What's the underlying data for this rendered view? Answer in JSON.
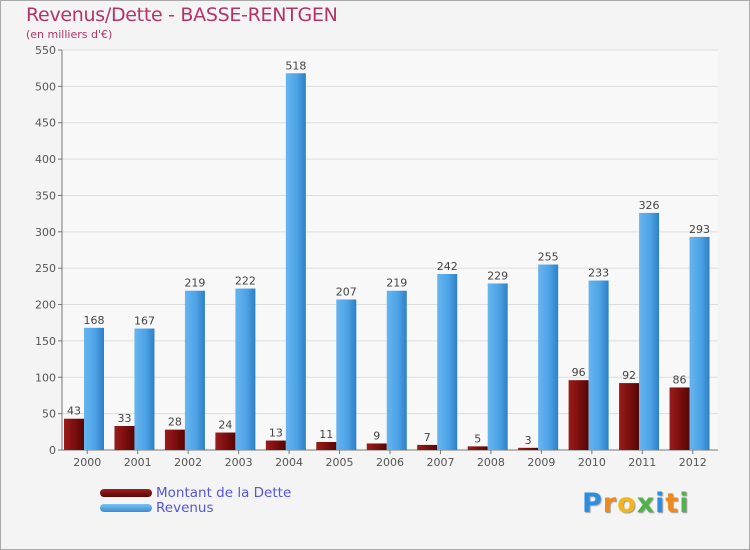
{
  "chart_data": {
    "type": "bar",
    "title": "Revenus/Dette - BASSE-RENTGEN",
    "subtitle": "(en milliers d'€)",
    "categories": [
      "2000",
      "2001",
      "2002",
      "2003",
      "2004",
      "2005",
      "2006",
      "2007",
      "2008",
      "2009",
      "2010",
      "2011",
      "2012"
    ],
    "series": [
      {
        "name": "Montant de la Dette",
        "color": "#7a0e0e",
        "values": [
          43,
          33,
          28,
          24,
          13,
          11,
          9,
          7,
          5,
          3,
          96,
          92,
          86
        ]
      },
      {
        "name": "Revenus",
        "color": "#4ea3e6",
        "values": [
          168,
          167,
          219,
          222,
          518,
          207,
          219,
          242,
          229,
          255,
          233,
          326,
          293
        ]
      }
    ],
    "ylim": [
      0,
      550
    ],
    "yticks": [
      0,
      50,
      100,
      150,
      200,
      250,
      300,
      350,
      400,
      450,
      500,
      550
    ],
    "grid": true,
    "legend": "bottom-left",
    "xlabel": "",
    "ylabel": ""
  },
  "logo": {
    "letters": [
      "P",
      "r",
      "o",
      "x",
      "i",
      "t",
      "i"
    ],
    "colors": [
      "#2c8ee0",
      "#ee8a1c",
      "#f2b61c",
      "#4fb34a",
      "#2c8ee0",
      "#ee8a1c",
      "#4fb34a"
    ]
  }
}
